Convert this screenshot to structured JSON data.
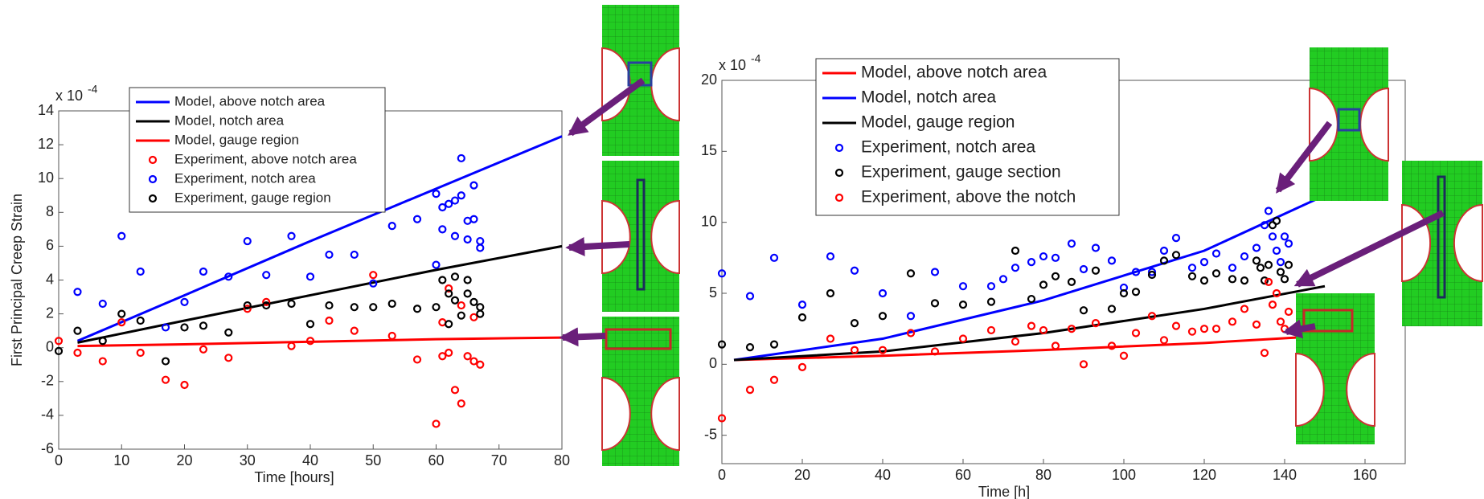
{
  "chart_data": [
    {
      "type": "scatter",
      "x_label": "Time [hours]",
      "y_label": "First Principal Creep Strain",
      "y_multiplier": "x 10",
      "y_multiplier_exp": "-4",
      "xlim": [
        0,
        80
      ],
      "ylim": [
        -6,
        14
      ],
      "xticks": [
        0,
        10,
        20,
        30,
        40,
        50,
        60,
        70,
        80
      ],
      "yticks": [
        -6,
        -4,
        -2,
        0,
        2,
        4,
        6,
        8,
        10,
        12,
        14
      ],
      "series": [
        {
          "name": "Model, above notch area",
          "color": "#0000ff",
          "kind": "line",
          "x": [
            3,
            20,
            40,
            60,
            80
          ],
          "values": [
            0.4,
            3.1,
            6.3,
            9.4,
            12.5
          ]
        },
        {
          "name": "Model, notch area",
          "color": "#000000",
          "kind": "line",
          "x": [
            3,
            20,
            40,
            60,
            80
          ],
          "values": [
            0.3,
            1.6,
            3.1,
            4.6,
            6.0
          ]
        },
        {
          "name": "Model, gauge region",
          "color": "#ff0000",
          "kind": "line",
          "x": [
            3,
            20,
            40,
            60,
            80
          ],
          "values": [
            0.1,
            0.2,
            0.35,
            0.5,
            0.6
          ]
        },
        {
          "name": "Experiment, above notch area",
          "color": "#ff0000",
          "kind": "scatter",
          "x": [
            0,
            3,
            7,
            10,
            13,
            17,
            20,
            23,
            27,
            30,
            33,
            37,
            40,
            43,
            47,
            50,
            53,
            57,
            60,
            61,
            61,
            62,
            63,
            64,
            65,
            66,
            67,
            62,
            64,
            66
          ],
          "values": [
            0.4,
            -0.3,
            -0.8,
            1.5,
            -0.3,
            -1.9,
            -2.2,
            -0.1,
            -0.6,
            2.3,
            2.7,
            0.1,
            0.4,
            1.6,
            1.0,
            4.3,
            0.7,
            -0.7,
            -4.5,
            1.5,
            -0.5,
            -0.3,
            -2.5,
            -3.3,
            -0.5,
            -0.8,
            -1.0,
            3.5,
            2.5,
            1.8
          ]
        },
        {
          "name": "Experiment, notch area",
          "color": "#0000ff",
          "kind": "scatter",
          "x": [
            3,
            7,
            10,
            13,
            17,
            20,
            23,
            27,
            30,
            33,
            37,
            40,
            43,
            47,
            50,
            53,
            57,
            60,
            60,
            61,
            61,
            62,
            63,
            63,
            64,
            64,
            65,
            65,
            66,
            66,
            67,
            67
          ],
          "values": [
            3.3,
            2.6,
            6.6,
            4.5,
            1.2,
            2.7,
            4.5,
            4.2,
            6.3,
            4.3,
            6.6,
            4.2,
            5.5,
            5.5,
            3.8,
            7.2,
            7.6,
            4.9,
            9.1,
            8.3,
            7.0,
            8.5,
            6.6,
            8.7,
            9.0,
            11.2,
            7.5,
            6.4,
            7.6,
            9.6,
            5.9,
            6.3
          ]
        },
        {
          "name": "Experiment, gauge region",
          "color": "#000000",
          "kind": "scatter",
          "x": [
            0,
            3,
            7,
            10,
            13,
            17,
            20,
            23,
            27,
            30,
            33,
            37,
            40,
            43,
            47,
            50,
            53,
            57,
            60,
            61,
            62,
            62,
            63,
            64,
            65,
            65,
            66,
            67,
            67,
            63
          ],
          "values": [
            -0.2,
            1.0,
            0.4,
            2.0,
            1.6,
            -0.8,
            1.2,
            1.3,
            0.9,
            2.5,
            2.5,
            2.6,
            1.4,
            2.5,
            2.4,
            2.4,
            2.6,
            2.3,
            2.4,
            4.0,
            3.2,
            1.4,
            4.2,
            1.9,
            4.0,
            3.2,
            2.7,
            2.4,
            2.0,
            2.8
          ]
        }
      ]
    },
    {
      "type": "scatter",
      "x_label": "Time [h]",
      "y_multiplier": "x 10",
      "y_multiplier_exp": "-4",
      "xlim": [
        0,
        170
      ],
      "ylim": [
        -7,
        20
      ],
      "xticks": [
        0,
        20,
        40,
        60,
        80,
        100,
        120,
        140,
        160
      ],
      "yticks": [
        -5,
        0,
        5,
        10,
        15,
        20
      ],
      "series": [
        {
          "name": "Model, above notch area",
          "color": "#ff0000",
          "kind": "line",
          "x": [
            3,
            40,
            80,
            120,
            150
          ],
          "values": [
            0.3,
            0.6,
            1.0,
            1.5,
            2.0
          ]
        },
        {
          "name": "Model, notch area",
          "color": "#0000ff",
          "kind": "line",
          "x": [
            3,
            40,
            80,
            120,
            150
          ],
          "values": [
            0.3,
            1.8,
            4.5,
            8.0,
            11.9
          ]
        },
        {
          "name": "Model, gauge region",
          "color": "#000000",
          "kind": "line",
          "x": [
            3,
            40,
            80,
            120,
            150
          ],
          "values": [
            0.3,
            0.9,
            2.2,
            3.9,
            5.5
          ]
        },
        {
          "name": "Experiment, notch area",
          "color": "#0000ff",
          "kind": "scatter",
          "x": [
            0,
            7,
            13,
            20,
            27,
            33,
            40,
            47,
            53,
            60,
            67,
            70,
            73,
            77,
            80,
            83,
            87,
            90,
            93,
            97,
            100,
            103,
            107,
            110,
            113,
            117,
            120,
            123,
            127,
            130,
            133,
            135,
            136,
            137,
            138,
            139,
            140,
            141
          ],
          "values": [
            6.4,
            4.8,
            7.5,
            4.2,
            7.6,
            6.6,
            5.0,
            3.4,
            6.5,
            5.5,
            5.5,
            6.0,
            6.8,
            7.2,
            7.6,
            7.5,
            8.5,
            6.7,
            8.2,
            7.3,
            5.4,
            6.5,
            6.5,
            8.0,
            8.9,
            6.8,
            7.2,
            7.8,
            6.8,
            7.6,
            8.2,
            9.8,
            10.8,
            9.0,
            8.0,
            7.2,
            9.0,
            8.5
          ]
        },
        {
          "name": "Experiment, gauge section",
          "color": "#000000",
          "kind": "scatter",
          "x": [
            0,
            7,
            13,
            20,
            27,
            33,
            40,
            47,
            53,
            60,
            67,
            73,
            77,
            80,
            83,
            87,
            90,
            93,
            97,
            100,
            103,
            107,
            110,
            113,
            117,
            120,
            123,
            127,
            130,
            133,
            134,
            135,
            136,
            137,
            138,
            139,
            140,
            141
          ],
          "values": [
            1.4,
            1.2,
            1.4,
            3.3,
            5.0,
            2.9,
            3.4,
            6.4,
            4.3,
            4.2,
            4.4,
            8.0,
            4.6,
            5.6,
            6.2,
            5.8,
            3.8,
            6.6,
            3.9,
            5.0,
            5.1,
            6.3,
            7.3,
            7.7,
            6.2,
            5.9,
            6.4,
            6.0,
            5.9,
            7.3,
            6.8,
            5.9,
            7.0,
            9.8,
            10.1,
            6.5,
            6.0,
            7.0
          ]
        },
        {
          "name": "Experiment, above the notch",
          "color": "#ff0000",
          "kind": "scatter",
          "x": [
            0,
            7,
            13,
            20,
            27,
            33,
            40,
            47,
            53,
            60,
            67,
            73,
            77,
            80,
            83,
            87,
            90,
            93,
            97,
            100,
            103,
            107,
            110,
            113,
            117,
            120,
            123,
            127,
            130,
            133,
            135,
            136,
            137,
            138,
            139,
            140,
            141
          ],
          "values": [
            -3.8,
            -1.8,
            -1.1,
            -0.2,
            1.8,
            1.0,
            1.0,
            2.2,
            0.9,
            1.8,
            2.4,
            1.6,
            2.7,
            2.4,
            1.3,
            2.5,
            0,
            2.9,
            1.3,
            0.6,
            2.2,
            3.4,
            1.7,
            2.7,
            2.3,
            2.5,
            2.5,
            3.0,
            3.9,
            2.8,
            0.8,
            5.8,
            4.2,
            5.0,
            3.0,
            2.5,
            3.7
          ]
        }
      ]
    }
  ]
}
